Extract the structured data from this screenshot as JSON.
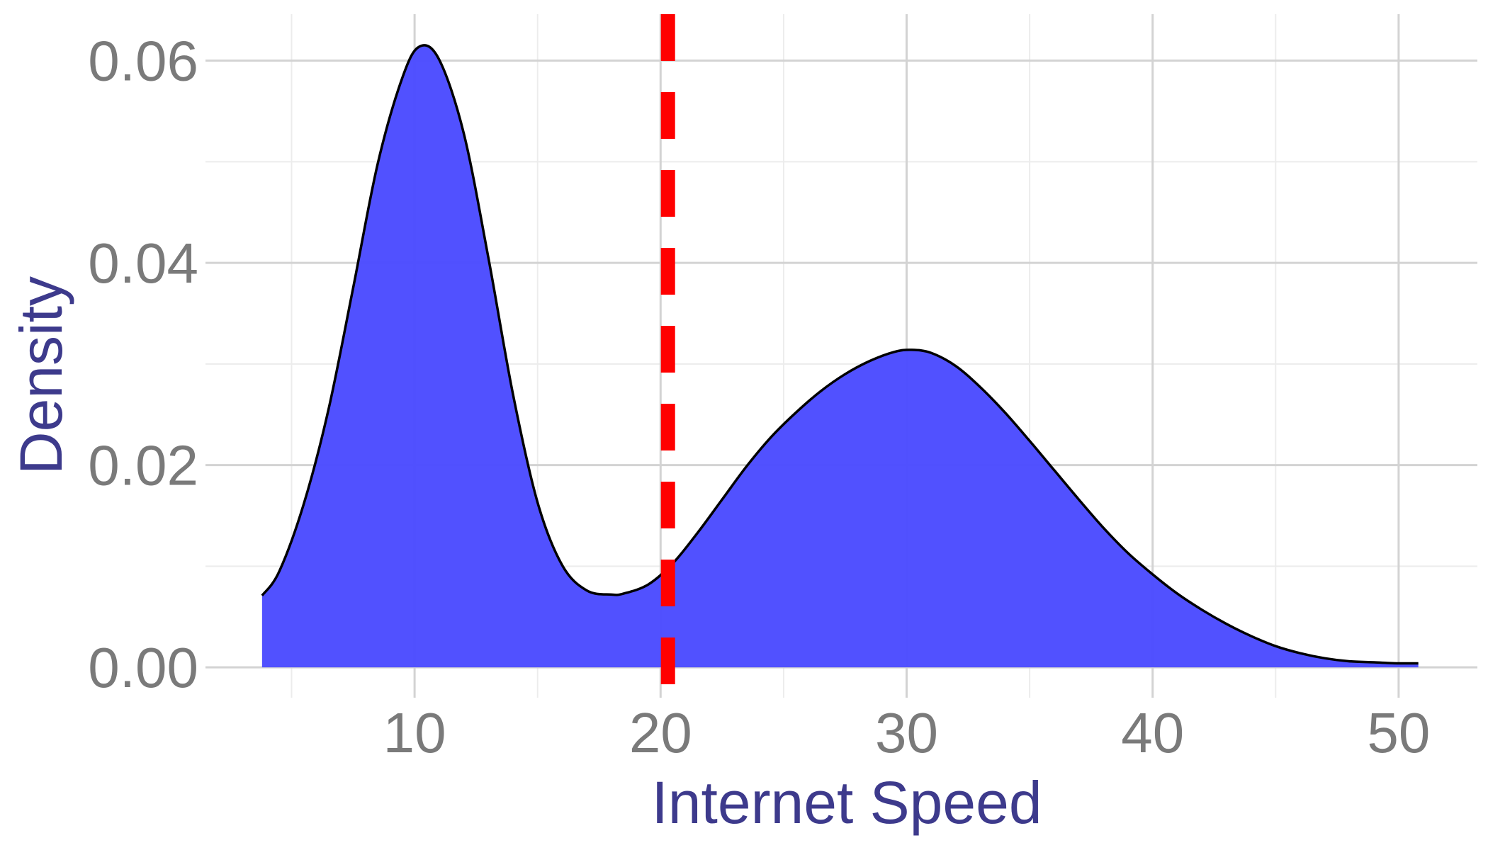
{
  "chart_data": {
    "type": "area",
    "xlabel": "Internet Speed",
    "ylabel": "Density",
    "xlim": [
      1.5,
      53.2
    ],
    "ylim": [
      -0.003,
      0.0646
    ],
    "x_ticks": [
      10,
      20,
      30,
      40,
      50
    ],
    "x_tick_labels": [
      "10",
      "20",
      "30",
      "40",
      "50"
    ],
    "y_ticks": [
      0,
      0.02,
      0.04,
      0.06
    ],
    "y_tick_labels": [
      "0.00",
      "0.02",
      "0.04",
      "0.06"
    ],
    "grid": true,
    "reference_line": {
      "x": 20.3,
      "style": "dashed",
      "color": "#ff0000"
    },
    "series": [
      {
        "fill": "#4b4bff",
        "stroke": "#000000",
        "x": [
          3.8,
          4.5,
          5.5,
          6.5,
          7.5,
          8.5,
          9.5,
          10.2,
          11,
          12,
          13,
          14,
          15,
          16,
          17,
          18,
          18.5,
          19.5,
          20.5,
          21.5,
          22.5,
          23.5,
          24.5,
          25.5,
          26.5,
          27.5,
          28.5,
          29.5,
          30.2,
          31,
          32,
          33,
          34,
          35,
          36,
          37,
          38,
          39,
          40,
          41,
          42,
          43,
          44,
          45,
          46,
          47,
          48,
          49,
          50,
          50.8
        ],
        "y": [
          0.0071,
          0.0095,
          0.0162,
          0.0255,
          0.0375,
          0.0498,
          0.0583,
          0.0614,
          0.0601,
          0.0528,
          0.0405,
          0.027,
          0.0163,
          0.0101,
          0.0076,
          0.0072,
          0.0073,
          0.0082,
          0.0103,
          0.0133,
          0.0166,
          0.0199,
          0.0228,
          0.0252,
          0.0273,
          0.029,
          0.0303,
          0.0312,
          0.0314,
          0.0311,
          0.0298,
          0.0277,
          0.0252,
          0.0224,
          0.0195,
          0.0166,
          0.0138,
          0.0113,
          0.0092,
          0.0073,
          0.0057,
          0.0043,
          0.0031,
          0.0021,
          0.0014,
          0.0009,
          0.0006,
          0.0005,
          0.0004,
          0.0004
        ]
      }
    ]
  }
}
